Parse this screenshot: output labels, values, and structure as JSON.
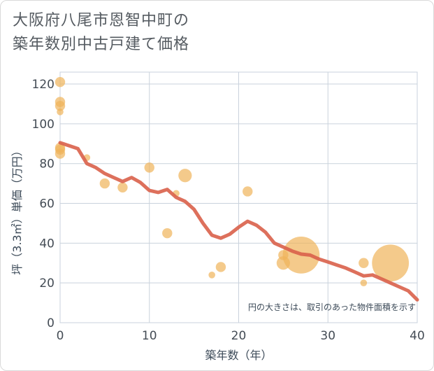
{
  "title": {
    "line1": "大阪府八尾市恩智中町の",
    "line2": "築年数別中古戸建て価格"
  },
  "chart_data": {
    "type": "scatter",
    "title": "大阪府八尾市恩智中町の築年数別中古戸建て価格",
    "xlabel": "築年数（年）",
    "ylabel": "坪（3.3㎡）単価（万円）",
    "xlim": [
      0,
      40
    ],
    "ylim": [
      0,
      126
    ],
    "xticks": [
      0,
      10,
      20,
      30,
      40
    ],
    "yticks": [
      0,
      20,
      40,
      60,
      80,
      100,
      120
    ],
    "grid": true,
    "note": "円の大きさは、取引のあった物件面積を示す",
    "colors": {
      "points": "#f0b35a",
      "trend": "#d9604a"
    },
    "scatter": [
      {
        "x": 0,
        "y": 121,
        "size": 3
      },
      {
        "x": 0,
        "y": 111,
        "size": 3
      },
      {
        "x": 0,
        "y": 109,
        "size": 3
      },
      {
        "x": 0,
        "y": 106,
        "size": 2
      },
      {
        "x": 0,
        "y": 88,
        "size": 3
      },
      {
        "x": 0,
        "y": 87,
        "size": 3
      },
      {
        "x": 0,
        "y": 85,
        "size": 3
      },
      {
        "x": 3,
        "y": 83,
        "size": 2
      },
      {
        "x": 5,
        "y": 70,
        "size": 3
      },
      {
        "x": 7,
        "y": 68,
        "size": 3
      },
      {
        "x": 10,
        "y": 78,
        "size": 3
      },
      {
        "x": 12,
        "y": 45,
        "size": 3
      },
      {
        "x": 13,
        "y": 65,
        "size": 2
      },
      {
        "x": 14,
        "y": 74,
        "size": 4
      },
      {
        "x": 17,
        "y": 24,
        "size": 2
      },
      {
        "x": 18,
        "y": 28,
        "size": 3
      },
      {
        "x": 21,
        "y": 66,
        "size": 3
      },
      {
        "x": 25,
        "y": 34,
        "size": 3
      },
      {
        "x": 25,
        "y": 30,
        "size": 4
      },
      {
        "x": 27,
        "y": 34,
        "size": 11
      },
      {
        "x": 34,
        "y": 30,
        "size": 3
      },
      {
        "x": 34,
        "y": 20,
        "size": 2
      },
      {
        "x": 37,
        "y": 30,
        "size": 11
      }
    ],
    "trend": {
      "x": [
        0,
        1,
        2,
        3,
        4,
        5,
        6,
        7,
        8,
        9,
        10,
        11,
        12,
        13,
        14,
        15,
        16,
        17,
        18,
        19,
        20,
        21,
        22,
        23,
        24,
        25,
        26,
        27,
        28,
        29,
        30,
        31,
        32,
        33,
        34,
        35,
        36,
        37,
        38,
        39,
        40
      ],
      "y": [
        90.5,
        89,
        87.5,
        80,
        78,
        75,
        73,
        71,
        73,
        70.5,
        66.5,
        65.5,
        67,
        63,
        61,
        57,
        50,
        44,
        42.5,
        44.5,
        48,
        51,
        49,
        45.5,
        40,
        38,
        36,
        34.5,
        34,
        32,
        30.5,
        29,
        27.5,
        25.5,
        23.5,
        24,
        22,
        20,
        18,
        16,
        11.5
      ]
    }
  }
}
